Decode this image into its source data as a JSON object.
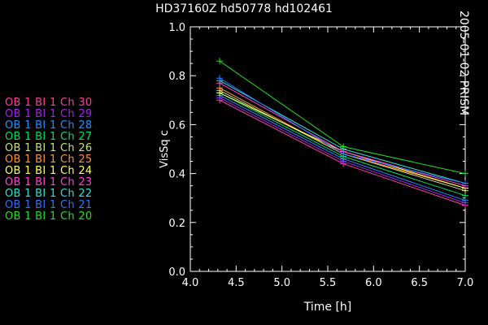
{
  "header": {
    "title": "HD37160Z hd50778   hd102461"
  },
  "side_label": "2005-01-02 PRISM",
  "legend": [
    {
      "label": "OB 1 BI 1 Ch 30",
      "color": "#ff3da0"
    },
    {
      "label": "OB 1 BI 1 Ch 29",
      "color": "#a020f0"
    },
    {
      "label": "OB 1 BI 1 Ch 28",
      "color": "#1e90ff"
    },
    {
      "label": "OB 1 BI 1 Ch 27",
      "color": "#00e060"
    },
    {
      "label": "OB 1 BI 1 Ch 26",
      "color": "#c8e080"
    },
    {
      "label": "OB 1 BI 1 Ch 25",
      "color": "#ff9040"
    },
    {
      "label": "OB 1 BI 1 Ch 24",
      "color": "#ffff60"
    },
    {
      "label": "OB 1 BI 1 Ch 23",
      "color": "#ff40d0"
    },
    {
      "label": "OB 1 BI 1 Ch 22",
      "color": "#30e0d0"
    },
    {
      "label": "OB 1 BI 1 Ch 21",
      "color": "#3070ff"
    },
    {
      "label": "OB 1 BI 1 Ch 20",
      "color": "#20e020"
    }
  ],
  "chart_data": {
    "type": "line",
    "xlabel": "Time [h]",
    "ylabel": "VisSq c",
    "xlim": [
      4.0,
      7.0
    ],
    "ylim": [
      0.0,
      1.0
    ],
    "xticks": [
      "4.0",
      "4.5",
      "5.0",
      "5.5",
      "6.0",
      "6.5",
      "7.0"
    ],
    "yticks": [
      "0.0",
      "0.2",
      "0.4",
      "0.6",
      "0.8",
      "1.0"
    ],
    "x": [
      4.32,
      5.67,
      7.0
    ],
    "series": [
      {
        "name": "OB 1 BI 1 Ch 30",
        "color": "#ff3da0",
        "values": [
          0.7,
          0.44,
          0.27
        ]
      },
      {
        "name": "OB 1 BI 1 Ch 29",
        "color": "#a020f0",
        "values": [
          0.71,
          0.45,
          0.28
        ]
      },
      {
        "name": "OB 1 BI 1 Ch 28",
        "color": "#1e90ff",
        "values": [
          0.72,
          0.46,
          0.29
        ]
      },
      {
        "name": "OB 1 BI 1 Ch 27",
        "color": "#00e060",
        "values": [
          0.73,
          0.47,
          0.31
        ]
      },
      {
        "name": "OB 1 BI 1 Ch 26",
        "color": "#c8e080",
        "values": [
          0.74,
          0.48,
          0.33
        ]
      },
      {
        "name": "OB 1 BI 1 Ch 25",
        "color": "#ff9040",
        "values": [
          0.75,
          0.48,
          0.34
        ]
      },
      {
        "name": "OB 1 BI 1 Ch 24",
        "color": "#ffff60",
        "values": [
          0.73,
          0.49,
          0.34
        ]
      },
      {
        "name": "OB 1 BI 1 Ch 23",
        "color": "#ff40d0",
        "values": [
          0.77,
          0.49,
          0.35
        ]
      },
      {
        "name": "OB 1 BI 1 Ch 22",
        "color": "#30e0d0",
        "values": [
          0.78,
          0.5,
          0.36
        ]
      },
      {
        "name": "OB 1 BI 1 Ch 21",
        "color": "#3070ff",
        "values": [
          0.79,
          0.48,
          0.36
        ]
      },
      {
        "name": "OB 1 BI 1 Ch 20",
        "color": "#20e020",
        "values": [
          0.86,
          0.51,
          0.4
        ]
      }
    ]
  }
}
